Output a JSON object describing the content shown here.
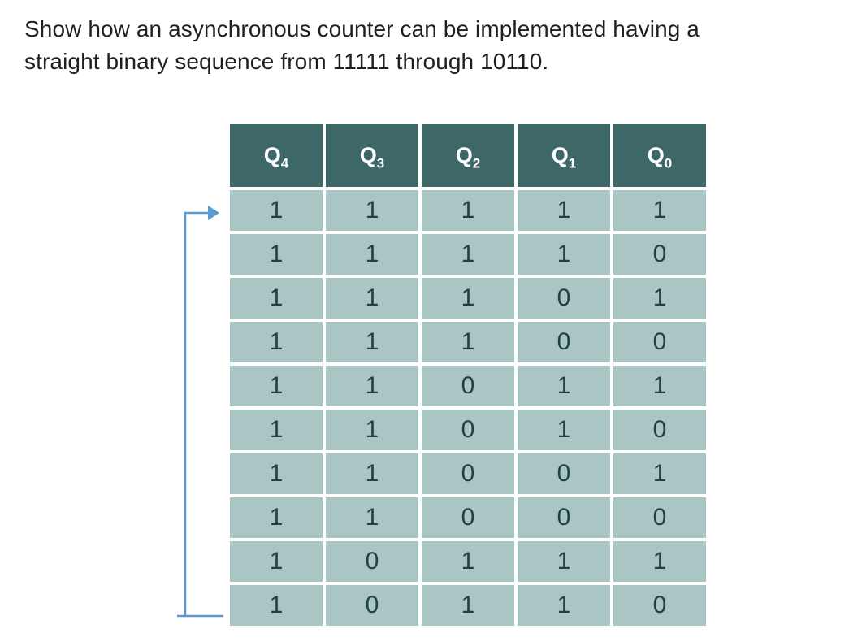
{
  "page": {
    "question": "Show how an asynchronous counter can be implemented having a straight binary sequence from 11111 through 10110."
  },
  "table": {
    "headers": [
      {
        "base": "Q",
        "sub": "4"
      },
      {
        "base": "Q",
        "sub": "3"
      },
      {
        "base": "Q",
        "sub": "2"
      },
      {
        "base": "Q",
        "sub": "1"
      },
      {
        "base": "Q",
        "sub": "0"
      }
    ],
    "rows": [
      [
        "1",
        "1",
        "1",
        "1",
        "1"
      ],
      [
        "1",
        "1",
        "1",
        "1",
        "0"
      ],
      [
        "1",
        "1",
        "1",
        "0",
        "1"
      ],
      [
        "1",
        "1",
        "1",
        "0",
        "0"
      ],
      [
        "1",
        "1",
        "0",
        "1",
        "1"
      ],
      [
        "1",
        "1",
        "0",
        "1",
        "0"
      ],
      [
        "1",
        "1",
        "0",
        "0",
        "1"
      ],
      [
        "1",
        "1",
        "0",
        "0",
        "0"
      ],
      [
        "1",
        "0",
        "1",
        "1",
        "1"
      ],
      [
        "1",
        "0",
        "1",
        "1",
        "0"
      ]
    ],
    "colors": {
      "header_bg": "#3E6868",
      "header_text": "#FFFFFF",
      "cell_bg": "#A9C6C5",
      "cell_text": "#20413F"
    }
  },
  "loop_arrow": {
    "color": "#5B9BD5",
    "meaning": "recycle-arrow from last row (10110) back to first row (11111)"
  }
}
